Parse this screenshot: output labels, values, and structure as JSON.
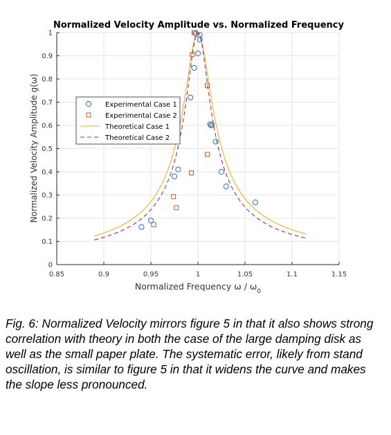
{
  "chart_data": {
    "type": "scatter",
    "title": "Normalized Velocity Amplitude vs. Normalized Frequency",
    "xlabel": "Normalized Frequency ω / ω₀",
    "ylabel": "Normalized Velocity Amplitude g(ω)",
    "xlim": [
      0.85,
      1.15
    ],
    "ylim": [
      0,
      1
    ],
    "xticks": [
      0.85,
      0.9,
      0.95,
      1,
      1.05,
      1.1,
      1.15
    ],
    "xtick_labels": [
      "0.85",
      "0.9",
      "0.95",
      "1",
      "1.05",
      "1.1",
      "1.15"
    ],
    "yticks": [
      0,
      0.1,
      0.2,
      0.3,
      0.4,
      0.5,
      0.6,
      0.7,
      0.8,
      0.9,
      1
    ],
    "ytick_labels": [
      "0",
      "0.1",
      "0.2",
      "0.3",
      "0.4",
      "0.5",
      "0.6",
      "0.7",
      "0.8",
      "0.9",
      "1"
    ],
    "grid": true,
    "legend_position": "upper-left",
    "series": [
      {
        "name": "Experimental Case 1",
        "kind": "marker",
        "marker": "circle",
        "color": "#1f6fc4",
        "points": [
          [
            0.94,
            0.162
          ],
          [
            0.95,
            0.19
          ],
          [
            0.975,
            0.38
          ],
          [
            0.979,
            0.41
          ],
          [
            0.992,
            0.72
          ],
          [
            0.996,
            0.848
          ],
          [
            0.998,
            0.995
          ],
          [
            1.0,
            0.91
          ],
          [
            1.002,
            0.99
          ],
          [
            1.002,
            0.97
          ],
          [
            1.013,
            0.605
          ],
          [
            1.014,
            0.6
          ],
          [
            1.019,
            0.53
          ],
          [
            1.025,
            0.4
          ],
          [
            1.03,
            0.337
          ],
          [
            1.061,
            0.268
          ]
        ]
      },
      {
        "name": "Experimental Case 2",
        "kind": "marker",
        "marker": "square",
        "color": "#d9531e",
        "points": [
          [
            0.953,
            0.172
          ],
          [
            0.974,
            0.293
          ],
          [
            0.977,
            0.245
          ],
          [
            0.993,
            0.395
          ],
          [
            0.994,
            0.905
          ],
          [
            0.996,
            1.0
          ],
          [
            0.997,
            1.0
          ],
          [
            1.01,
            0.772
          ],
          [
            1.01,
            0.475
          ],
          [
            1.015,
            0.6
          ]
        ]
      },
      {
        "name": "Theoretical Case 1",
        "kind": "line",
        "dash": "solid",
        "color": "#edb120",
        "gamma": 0.0145,
        "x": [
          0.89,
          1.115
        ]
      },
      {
        "name": "Theoretical Case 2",
        "kind": "line",
        "dash": "dashed",
        "color": "#7e2f8e",
        "gamma": 0.0125,
        "x": [
          0.89,
          1.115
        ]
      }
    ]
  },
  "caption": "Fig. 6: Normalized Velocity mirrors figure 5 in that it also shows strong correlation with theory in both the case of the large damping disk as well as the small paper plate. The systematic error, likely from stand oscillation, is similar to figure 5 in that it widens the curve and makes the slope less pronounced."
}
